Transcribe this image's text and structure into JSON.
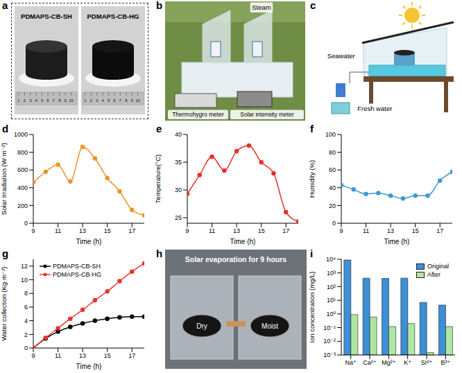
{
  "images": [
    {
      "panel": "a",
      "type": "photo",
      "labels": [
        "PDMAPS-CB-SH",
        "PDMAPS-CB-HG"
      ],
      "ruler": [
        1,
        2,
        3,
        4,
        5,
        6,
        7,
        8,
        9,
        10
      ]
    },
    {
      "panel": "b",
      "type": "photo",
      "labels": [
        "Steam",
        "Thermohygro meter",
        "Solar intensity meter"
      ]
    },
    {
      "panel": "c",
      "type": "diagram",
      "labels": [
        "Seawater",
        "Fresh water"
      ]
    },
    {
      "panel": "h",
      "type": "photo",
      "title": "Solar evaporation for 9 hours",
      "labels": [
        "Dry",
        "Moist"
      ]
    }
  ],
  "chart_data": [
    {
      "panel": "d",
      "type": "line",
      "xlabel": "Time (h)",
      "ylabel": "Solar Irradiation (W·m⁻²)",
      "x": [
        9,
        10,
        11,
        12,
        13,
        14,
        15,
        16,
        17,
        18
      ],
      "values": [
        460,
        580,
        660,
        470,
        860,
        730,
        510,
        360,
        150,
        90
      ],
      "color": "#f0922f",
      "marker": "circle",
      "line_style": "smooth",
      "grid": false,
      "xlim": [
        9,
        18
      ],
      "xticks": [
        9,
        11,
        13,
        15,
        17
      ],
      "ylim": [
        0,
        1000
      ],
      "yticks": [
        0,
        200,
        400,
        600,
        800,
        1000
      ]
    },
    {
      "panel": "e",
      "type": "line",
      "xlabel": "Time (h)",
      "ylabel": "Temperature(°C)",
      "x": [
        9,
        10,
        11,
        12,
        13,
        14,
        15,
        16,
        17,
        18
      ],
      "values": [
        29.3,
        32.7,
        36,
        33.5,
        37,
        38,
        35,
        33,
        26,
        24.3
      ],
      "color": "#e4322b",
      "marker": "circle",
      "line_style": "smooth",
      "grid": false,
      "xlim": [
        9,
        18
      ],
      "xticks": [
        9,
        11,
        13,
        15,
        17
      ],
      "ylim": [
        24,
        40
      ],
      "yticks": [
        25,
        30,
        35,
        40
      ]
    },
    {
      "panel": "f",
      "type": "line",
      "xlabel": "Time (h)",
      "ylabel": "Humidity (%)",
      "x": [
        9,
        10,
        11,
        12,
        13,
        14,
        15,
        16,
        17,
        18
      ],
      "values": [
        43,
        38,
        33,
        34,
        31,
        28,
        31,
        31,
        48,
        58
      ],
      "color": "#3d9ad6",
      "marker": "circle",
      "line_style": "smooth",
      "grid": false,
      "xlim": [
        9,
        18
      ],
      "xticks": [
        9,
        11,
        13,
        15,
        17
      ],
      "ylim": [
        0,
        100
      ],
      "yticks": [
        0,
        20,
        40,
        60,
        80,
        100
      ]
    },
    {
      "panel": "g",
      "type": "line",
      "xlabel": "Time (h)",
      "ylabel": "Water collection (Kg·m⁻²)",
      "x": [
        9,
        10,
        11,
        12,
        13,
        14,
        15,
        16,
        17,
        18
      ],
      "series": [
        {
          "name": "PDMAPS-CB-SH",
          "color": "#000000",
          "marker": "circle",
          "line_style": "smooth",
          "values": [
            0,
            1.4,
            2.4,
            3.1,
            3.6,
            4.0,
            4.3,
            4.5,
            4.6,
            4.6
          ]
        },
        {
          "name": "PDMAPS-CB-HG",
          "color": "#e8352f",
          "marker": "circle",
          "line_style": "smooth",
          "values": [
            0,
            1.5,
            2.9,
            4.3,
            5.6,
            7.0,
            8.3,
            9.8,
            11.2,
            12.4
          ]
        }
      ],
      "legend": "upper left",
      "grid": false,
      "xlim": [
        9,
        18
      ],
      "xticks": [
        9,
        11,
        13,
        15,
        17
      ],
      "ylim": [
        0,
        13
      ],
      "yticks": [
        0,
        2,
        4,
        6,
        8,
        10,
        12
      ]
    },
    {
      "panel": "i",
      "type": "bar",
      "ylabel": "Ion concentration (mg/L)",
      "categories": [
        "Na⁺",
        "Ca²⁺",
        "Mg²⁺",
        "K⁺",
        "Sr²⁺",
        "B³⁺"
      ],
      "series": [
        {
          "name": "Original",
          "color": "#3d8fd6",
          "values": [
            9000,
            420,
            400,
            420,
            7,
            4.5
          ]
        },
        {
          "name": "After",
          "color": "#aee6a4",
          "values": [
            0.9,
            0.6,
            0.12,
            0.2,
            0.0015,
            0.12
          ]
        }
      ],
      "log": "y",
      "legend": "upper right",
      "grid": false,
      "ylim": [
        0.001,
        10000
      ],
      "yticks": [
        {
          "value": 0.001,
          "label": "10⁻³"
        },
        {
          "value": 0.01,
          "label": "10⁻²"
        },
        {
          "value": 0.1,
          "label": "10⁻¹"
        },
        {
          "value": 1,
          "label": "10⁰"
        },
        {
          "value": 10,
          "label": "10¹"
        },
        {
          "value": 100,
          "label": "10²"
        },
        {
          "value": 1000,
          "label": "10³"
        },
        {
          "value": 10000,
          "label": "10⁴"
        }
      ]
    }
  ]
}
